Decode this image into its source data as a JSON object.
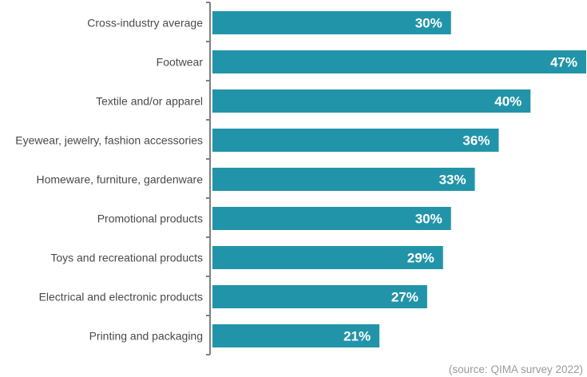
{
  "chart_data": {
    "type": "bar",
    "orientation": "horizontal",
    "categories": [
      "Cross-industry average",
      "Footwear",
      "Textile and/or apparel",
      "Eyewear, jewelry, fashion accessories",
      "Homeware, furniture, gardenware",
      "Promotional products",
      "Toys and recreational products",
      "Electrical and electronic products",
      "Printing and packaging"
    ],
    "values": [
      30,
      47,
      40,
      36,
      33,
      30,
      29,
      27,
      21
    ],
    "value_labels": [
      "30%",
      "47%",
      "40%",
      "36%",
      "33%",
      "30%",
      "29%",
      "27%",
      "21%"
    ],
    "xlim": [
      0,
      47
    ],
    "bar_color": "#2294a9",
    "axis_color": "#7f7f7f",
    "grid": false,
    "legend": "none"
  },
  "source_note": "(source: QIMA survey 2022)"
}
